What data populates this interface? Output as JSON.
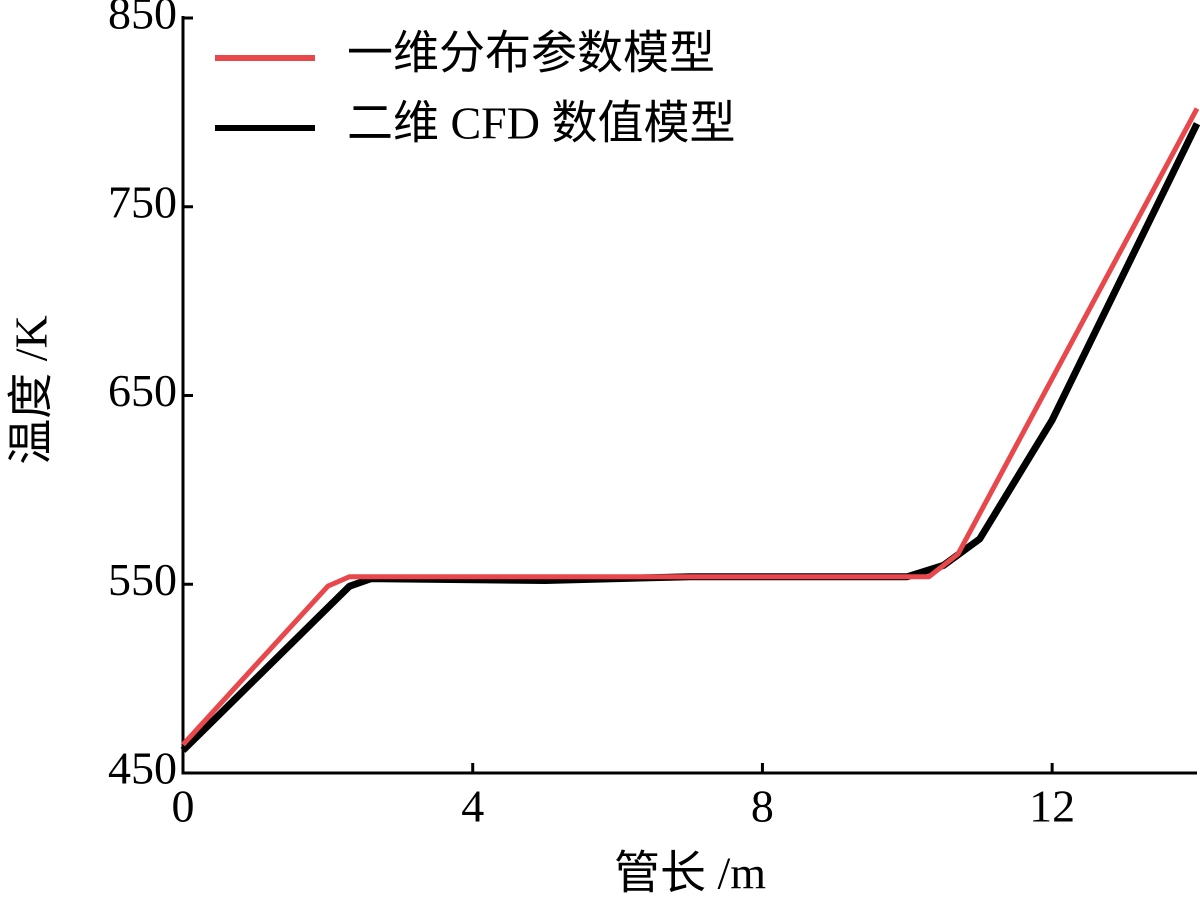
{
  "chart_data": {
    "type": "line",
    "x_label": "管长 /m",
    "y_label": "温度 /K",
    "xlim": [
      0,
      14
    ],
    "ylim": [
      450,
      850
    ],
    "xticks": [
      0,
      4,
      8,
      12
    ],
    "yticks": [
      450,
      550,
      650,
      750,
      850
    ],
    "legend": "upper left",
    "series": [
      {
        "name": "一维分布参数模型",
        "color": "#e8474c",
        "x": [
          0,
          2,
          2.3,
          10.3,
          10.7,
          14
        ],
        "values": [
          465,
          549,
          554,
          554,
          566,
          802
        ]
      },
      {
        "name": "二维 CFD 数值模型",
        "color": "#000000",
        "x": [
          0,
          2.3,
          2.6,
          5,
          7,
          10,
          10.5,
          11,
          12,
          14
        ],
        "values": [
          462,
          549,
          553,
          552,
          554,
          554,
          560,
          574,
          637,
          794
        ]
      }
    ]
  }
}
